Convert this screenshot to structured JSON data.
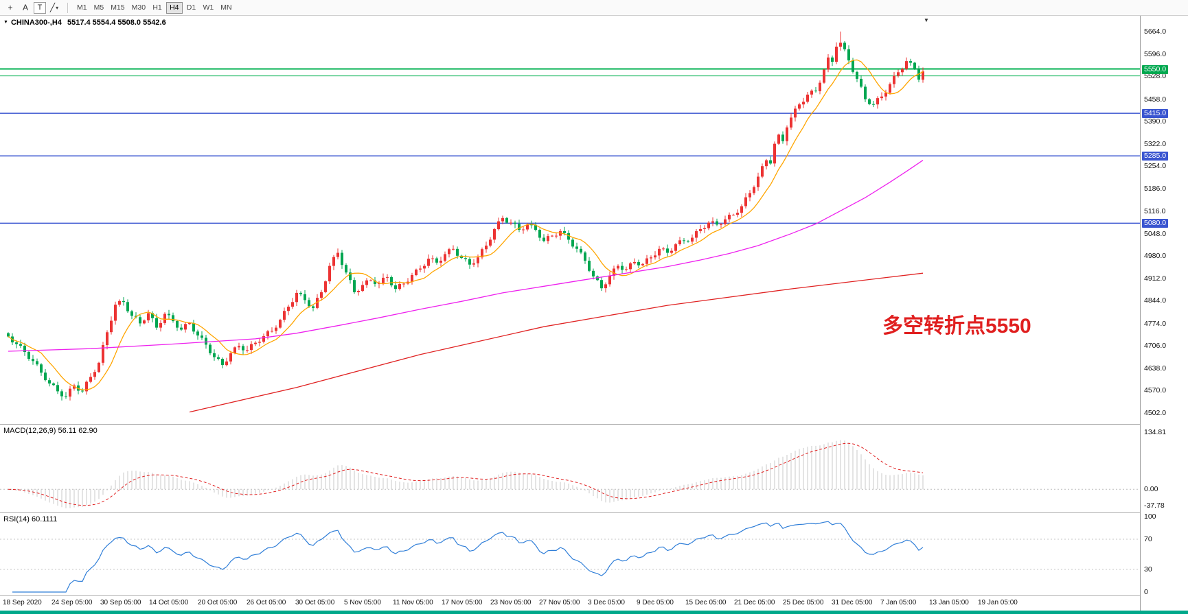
{
  "toolbar": {
    "tools": [
      {
        "id": "crosshair",
        "glyph": "+"
      },
      {
        "id": "text-label",
        "glyph": "A"
      },
      {
        "id": "text-frame",
        "glyph": "T"
      },
      {
        "id": "drawing-tools",
        "glyph": "╱"
      }
    ],
    "dropdown_glyph": "▾",
    "timeframes": [
      "M1",
      "M5",
      "M15",
      "M30",
      "H1",
      "H4",
      "D1",
      "W1",
      "MN"
    ],
    "active_timeframe": "H4"
  },
  "chart": {
    "menu_icon": "▼",
    "shift_marker_glyph": "▼",
    "title": "CHINA300-,H4",
    "ohlc_text": "5517.4 5554.4 5508.0 5542.6",
    "annotation": {
      "text": "多空转折点5550",
      "color": "#E01F1F"
    },
    "price_axis": {
      "labels": [
        "5664.0",
        "5596.0",
        "5528.0",
        "5458.0",
        "5390.0",
        "5322.0",
        "5254.0",
        "5186.0",
        "5116.0",
        "5048.0",
        "4980.0",
        "4912.0",
        "4844.0",
        "4774.0",
        "4706.0",
        "4638.0",
        "4570.0",
        "4502.0"
      ],
      "badges": [
        {
          "text": "5550.0",
          "price": 5550,
          "color": "#00A84F"
        },
        {
          "text": "5415.0",
          "price": 5415,
          "color": "#3A55D0"
        },
        {
          "text": "5285.0",
          "price": 5285,
          "color": "#3A55D0"
        },
        {
          "text": "5080.0",
          "price": 5080,
          "color": "#3A55D0"
        }
      ]
    },
    "hlines": [
      {
        "price": 5550,
        "color": "#00B050",
        "width": 2
      },
      {
        "price": 5529,
        "color": "#00B050",
        "width": 1
      },
      {
        "price": 5415,
        "color": "#3A55D0",
        "width": 1.5
      },
      {
        "price": 5285,
        "color": "#3A55D0",
        "width": 1.5
      },
      {
        "price": 5080,
        "color": "#3A55D0",
        "width": 1.5
      }
    ],
    "time_axis": [
      "18 Sep 2020",
      "24 Sep 05:00",
      "30 Sep 05:00",
      "14 Oct 05:00",
      "20 Oct 05:00",
      "26 Oct 05:00",
      "30 Oct 05:00",
      "5 Nov 05:00",
      "11 Nov 05:00",
      "17 Nov 05:00",
      "23 Nov 05:00",
      "27 Nov 05:00",
      "3 Dec 05:00",
      "9 Dec 05:00",
      "15 Dec 05:00",
      "21 Dec 05:00",
      "25 Dec 05:00",
      "31 Dec 05:00",
      "7 Jan 05:00",
      "13 Jan 05:00",
      "19 Jan 05:00"
    ]
  },
  "chart_data": {
    "type": "candlestick",
    "symbol": "CHINA300-",
    "timeframe": "H4",
    "ylim": [
      4502,
      5664
    ],
    "open_first": 4745,
    "closes": [
      4735,
      4717,
      4712,
      4707,
      4688,
      4667,
      4660,
      4650,
      4625,
      4602,
      4592,
      4587,
      4568,
      4553,
      4552,
      4576,
      4586,
      4570,
      4568,
      4597,
      4612,
      4627,
      4655,
      4709,
      4748,
      4783,
      4832,
      4843,
      4840,
      4812,
      4798,
      4794,
      4775,
      4784,
      4806,
      4791,
      4762,
      4776,
      4804,
      4800,
      4782,
      4762,
      4756,
      4773,
      4776,
      4750,
      4738,
      4731,
      4710,
      4684,
      4672,
      4667,
      4648,
      4659,
      4684,
      4702,
      4706,
      4693,
      4694,
      4712,
      4716,
      4719,
      4736,
      4751,
      4752,
      4762,
      4786,
      4813,
      4826,
      4840,
      4868,
      4864,
      4846,
      4827,
      4822,
      4853,
      4870,
      4903,
      4950,
      4977,
      4990,
      4953,
      4930,
      4907,
      4870,
      4874,
      4892,
      4906,
      4906,
      4895,
      4898,
      4914,
      4916,
      4891,
      4880,
      4895,
      4896,
      4902,
      4922,
      4939,
      4942,
      4950,
      4972,
      4973,
      4960,
      4966,
      4986,
      5001,
      5002,
      4981,
      4974,
      4971,
      4954,
      4958,
      4976,
      5001,
      5012,
      5030,
      5062,
      5086,
      5096,
      5082,
      5082,
      5078,
      5060,
      5061,
      5076,
      5075,
      5060,
      5036,
      5026,
      5041,
      5042,
      5042,
      5056,
      5050,
      5030,
      5009,
      5002,
      4991,
      4966,
      4935,
      4918,
      4907,
      4882,
      4894,
      4920,
      4942,
      4950,
      4938,
      4940,
      4958,
      4962,
      4952,
      4956,
      4973,
      4976,
      4982,
      5002,
      5003,
      4990,
      4996,
      5016,
      5028,
      5026,
      5024,
      5036,
      5056,
      5062,
      5065,
      5082,
      5086,
      5076,
      5077,
      5092,
      5106,
      5106,
      5112,
      5132,
      5159,
      5172,
      5190,
      5222,
      5254,
      5272,
      5262,
      5322,
      5350,
      5330,
      5372,
      5402,
      5429,
      5442,
      5450,
      5472,
      5484,
      5482,
      5508,
      5548,
      5585,
      5572,
      5618,
      5630,
      5610,
      5576,
      5541,
      5520,
      5496,
      5458,
      5443,
      5442,
      5461,
      5466,
      5478,
      5504,
      5529,
      5540,
      5550,
      5574,
      5569,
      5550,
      5517.4,
      5542.6
    ],
    "last_ohlc": {
      "open": 5517.4,
      "high": 5554.4,
      "low": 5508.0,
      "close": 5542.6
    },
    "peak_index": 202,
    "peak_high": 5664.0,
    "ma": {
      "fast_period": 9,
      "mid_anchors": [
        [
          0,
          4690
        ],
        [
          20,
          4698
        ],
        [
          40,
          4712
        ],
        [
          60,
          4728
        ],
        [
          70,
          4745
        ],
        [
          80,
          4768
        ],
        [
          90,
          4792
        ],
        [
          100,
          4818
        ],
        [
          110,
          4842
        ],
        [
          120,
          4868
        ],
        [
          130,
          4888
        ],
        [
          140,
          4908
        ],
        [
          150,
          4928
        ],
        [
          160,
          4948
        ],
        [
          168,
          4968
        ],
        [
          175,
          4988
        ],
        [
          182,
          5012
        ],
        [
          190,
          5048
        ],
        [
          196,
          5078
        ],
        [
          202,
          5118
        ],
        [
          208,
          5158
        ],
        [
          214,
          5205
        ],
        [
          218,
          5238
        ],
        [
          222,
          5272
        ]
      ],
      "slow_anchors": [
        [
          44,
          4505
        ],
        [
          70,
          4580
        ],
        [
          100,
          4680
        ],
        [
          130,
          4765
        ],
        [
          160,
          4830
        ],
        [
          190,
          4880
        ],
        [
          222,
          4928
        ]
      ]
    },
    "colors": {
      "up": "#EC3333",
      "down": "#00A651",
      "ma_fast": "#FFA500",
      "ma_mid": "#EE22EE",
      "ma_slow": "#E02222",
      "macd_hist": "#C9C9C9",
      "macd_signal": "#E02020",
      "rsi": "#2F7ED8"
    }
  },
  "macd": {
    "title": "MACD(12,26,9) 56.11 62.90",
    "fast": 12,
    "slow": 26,
    "signal": 9,
    "main_value": "56.11",
    "signal_value": "62.90",
    "scale": [
      -45,
      140
    ],
    "axis_values": [
      134.81,
      0,
      -37.78
    ]
  },
  "rsi": {
    "title": "RSI(14) 60.1111",
    "period": 14,
    "value": "60.1111",
    "axis_values": [
      100,
      70,
      30,
      0
    ],
    "levels": [
      70,
      30
    ]
  }
}
